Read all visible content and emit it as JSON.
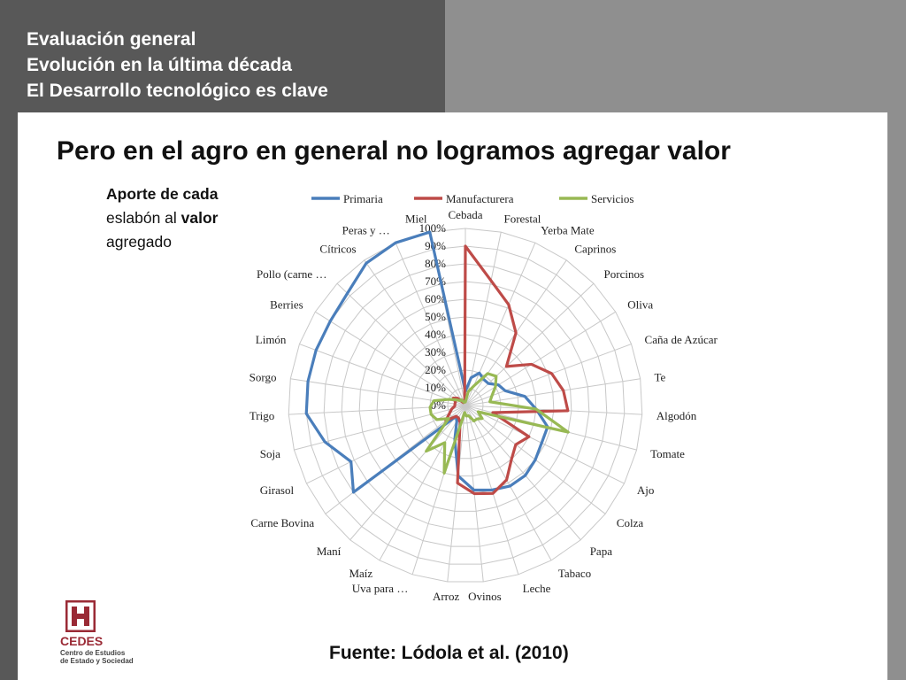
{
  "header": {
    "line1": "Evaluación general",
    "line2": "Evolución en la última década",
    "line3": "El Desarrollo tecnológico es clave"
  },
  "slide_title": "Pero en el agro en general no logramos agregar valor",
  "caption": {
    "part1": "Aporte de cada",
    "part2": "eslabón al ",
    "bold": "valor",
    "part3": "agregado"
  },
  "source": "Fuente: Lódola et al. (2010)",
  "logo": {
    "name": "CEDES",
    "subtitle1": "Centro de Estudios",
    "subtitle2": "de Estado y Sociedad"
  },
  "chart_data": {
    "type": "radar",
    "categories": [
      "Cebada",
      "Forestal",
      "Yerba Mate",
      "Caprinos",
      "Porcinos",
      "Oliva",
      "Caña de Azúcar",
      "Te",
      "Algodón",
      "Tomate",
      "Ajo",
      "Colza",
      "Papa",
      "Tabaco",
      "Leche",
      "Ovinos",
      "Arroz",
      "Uva para …",
      "Maíz",
      "Maní",
      "Carne Bovina",
      "Girasol",
      "Soja",
      "Trigo",
      "Sorgo",
      "Limón",
      "Berries",
      "Pollo (carne …",
      "Cítricos",
      "Peras y …",
      "Miel"
    ],
    "scale_labels": [
      "0%",
      "10%",
      "20%",
      "30%",
      "40%",
      "50%",
      "60%",
      "70%",
      "80%",
      "90%",
      "100%"
    ],
    "ylim": [
      0,
      100
    ],
    "series": [
      {
        "name": "Primaria",
        "color": "#4a7ebb",
        "values": [
          8,
          16,
          20,
          18,
          18,
          22,
          24,
          34,
          40,
          48,
          48,
          50,
          52,
          52,
          50,
          48,
          40,
          20,
          10,
          8,
          80,
          72,
          82,
          90,
          90,
          90,
          90,
          92,
          98,
          100,
          100
        ]
      },
      {
        "name": "Manufacturera",
        "color": "#be4b48",
        "values": [
          90,
          72,
          62,
          50,
          32,
          44,
          52,
          56,
          58,
          16,
          40,
          36,
          40,
          48,
          52,
          50,
          44,
          10,
          8,
          8,
          14,
          10,
          8,
          6,
          6,
          6,
          8,
          6,
          2,
          2,
          2
        ]
      },
      {
        "name": "Servicios",
        "color": "#98b954",
        "values": [
          2,
          8,
          12,
          22,
          24,
          20,
          16,
          14,
          40,
          60,
          8,
          12,
          10,
          10,
          6,
          6,
          4,
          40,
          24,
          34,
          12,
          18,
          20,
          20,
          18,
          10,
          6,
          4,
          4,
          2,
          2
        ]
      }
    ],
    "legend_position": "top"
  }
}
